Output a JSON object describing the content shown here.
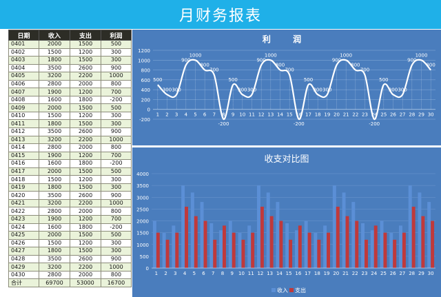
{
  "title": "月财务报表",
  "table": {
    "headers": [
      "日期",
      "收入",
      "支出",
      "利润"
    ],
    "rows": [
      [
        "0401",
        "2000",
        "1500",
        "500"
      ],
      [
        "0402",
        "1500",
        "1200",
        "300"
      ],
      [
        "0403",
        "1800",
        "1500",
        "300"
      ],
      [
        "0404",
        "3500",
        "2600",
        "900"
      ],
      [
        "0405",
        "3200",
        "2200",
        "1000"
      ],
      [
        "0406",
        "2800",
        "2000",
        "800"
      ],
      [
        "0407",
        "1900",
        "1200",
        "700"
      ],
      [
        "0408",
        "1600",
        "1800",
        "-200"
      ],
      [
        "0409",
        "2000",
        "1500",
        "500"
      ],
      [
        "0410",
        "1500",
        "1200",
        "300"
      ],
      [
        "0411",
        "1800",
        "1500",
        "300"
      ],
      [
        "0412",
        "3500",
        "2600",
        "900"
      ],
      [
        "0413",
        "3200",
        "2200",
        "1000"
      ],
      [
        "0414",
        "2800",
        "2000",
        "800"
      ],
      [
        "0415",
        "1900",
        "1200",
        "700"
      ],
      [
        "0416",
        "1600",
        "1800",
        "-200"
      ],
      [
        "0417",
        "2000",
        "1500",
        "500"
      ],
      [
        "0418",
        "1500",
        "1200",
        "300"
      ],
      [
        "0419",
        "1800",
        "1500",
        "300"
      ],
      [
        "0420",
        "3500",
        "2600",
        "900"
      ],
      [
        "0421",
        "3200",
        "2200",
        "1000"
      ],
      [
        "0422",
        "2800",
        "2000",
        "800"
      ],
      [
        "0423",
        "1900",
        "1200",
        "700"
      ],
      [
        "0424",
        "1600",
        "1800",
        "-200"
      ],
      [
        "0425",
        "2000",
        "1500",
        "500"
      ],
      [
        "0426",
        "1500",
        "1200",
        "300"
      ],
      [
        "0427",
        "1800",
        "1500",
        "300"
      ],
      [
        "0428",
        "3500",
        "2600",
        "900"
      ],
      [
        "0429",
        "3200",
        "2200",
        "1000"
      ],
      [
        "0430",
        "2800",
        "2000",
        "800"
      ]
    ],
    "total": [
      "合计",
      "69700",
      "53000",
      "16700"
    ]
  },
  "colors": {
    "title_bg": "#1fb0e8",
    "panel_bg": "#4a7dbd",
    "income": "#5b8fd6",
    "expense": "#c0393b",
    "line": "#ffffff"
  },
  "chart_data": [
    {
      "type": "line",
      "title": "利 润",
      "categories": [
        "1",
        "2",
        "3",
        "4",
        "5",
        "6",
        "7",
        "8",
        "9",
        "10",
        "11",
        "12",
        "13",
        "14",
        "15",
        "16",
        "17",
        "18",
        "19",
        "20",
        "21",
        "22",
        "23",
        "24",
        "25",
        "26",
        "27",
        "28",
        "29",
        "30"
      ],
      "series": [
        {
          "values": [
            500,
            300,
            300,
            900,
            1000,
            800,
            700,
            -200,
            500,
            300,
            300,
            900,
            1000,
            800,
            700,
            -200,
            500,
            300,
            300,
            900,
            1000,
            800,
            700,
            -200,
            500,
            300,
            300,
            900,
            1000,
            800
          ]
        }
      ],
      "data_labels": [
        "500",
        "300",
        "300",
        "900",
        "1000",
        "800",
        "700",
        "-200",
        "500",
        "300",
        "300",
        "900",
        "1000",
        "800",
        "700",
        "-200",
        "500",
        "300",
        "300",
        "900",
        "1000",
        "800",
        "700",
        "-200",
        "500",
        "300",
        "300",
        "900",
        "1000",
        "800"
      ],
      "yticks": [
        "-200",
        "0",
        "200",
        "400",
        "600",
        "800",
        "1000",
        "1200"
      ],
      "ylim": [
        -200,
        1200
      ],
      "grid": true
    },
    {
      "type": "bar",
      "title": "收支对比图",
      "categories": [
        "1",
        "2",
        "3",
        "4",
        "5",
        "6",
        "7",
        "8",
        "9",
        "10",
        "11",
        "12",
        "13",
        "14",
        "15",
        "16",
        "17",
        "18",
        "19",
        "20",
        "21",
        "22",
        "23",
        "24",
        "25",
        "26",
        "27",
        "28",
        "29",
        "30"
      ],
      "series": [
        {
          "name": "收入",
          "values": [
            2000,
            1500,
            1800,
            3500,
            3200,
            2800,
            1900,
            1600,
            2000,
            1500,
            1800,
            3500,
            3200,
            2800,
            1900,
            1600,
            2000,
            1500,
            1800,
            3500,
            3200,
            2800,
            1900,
            1600,
            2000,
            1500,
            1800,
            3500,
            3200,
            2800
          ]
        },
        {
          "name": "支出",
          "values": [
            1500,
            1200,
            1500,
            2600,
            2200,
            2000,
            1200,
            1800,
            1500,
            1200,
            1500,
            2600,
            2200,
            2000,
            1200,
            1800,
            1500,
            1200,
            1500,
            2600,
            2200,
            2000,
            1200,
            1800,
            1500,
            1200,
            1500,
            2600,
            2200,
            2000
          ]
        }
      ],
      "yticks": [
        "0",
        "500",
        "1000",
        "1500",
        "2000",
        "2500",
        "3000",
        "3500",
        "4000"
      ],
      "ylim": [
        0,
        4000
      ],
      "grid": true,
      "legend": "bottom"
    }
  ]
}
